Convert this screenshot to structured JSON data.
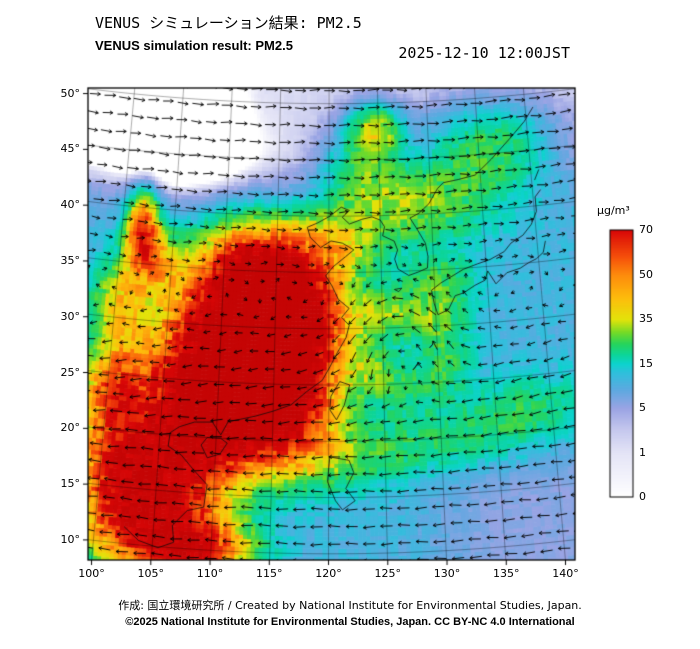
{
  "header": {
    "title_jp": "VENUS シミュレーション結果: PM2.5",
    "title_en": "VENUS simulation result: PM2.5",
    "datetime": "2025-12-10 12:00JST"
  },
  "axes": {
    "lat_ticks": [
      {
        "label": "50°",
        "value": 50
      },
      {
        "label": "45°",
        "value": 45
      },
      {
        "label": "40°",
        "value": 40
      },
      {
        "label": "35°",
        "value": 35
      },
      {
        "label": "30°",
        "value": 30
      },
      {
        "label": "25°",
        "value": 25
      },
      {
        "label": "20°",
        "value": 20
      },
      {
        "label": "15°",
        "value": 15
      },
      {
        "label": "10°",
        "value": 10
      }
    ],
    "lon_ticks": [
      {
        "label": "100°",
        "value": 100
      },
      {
        "label": "105°",
        "value": 105
      },
      {
        "label": "110°",
        "value": 110
      },
      {
        "label": "115°",
        "value": 115
      },
      {
        "label": "120°",
        "value": 120
      },
      {
        "label": "125°",
        "value": 125
      },
      {
        "label": "130°",
        "value": 130
      },
      {
        "label": "135°",
        "value": 135
      },
      {
        "label": "140°",
        "value": 140
      }
    ]
  },
  "colorbar": {
    "unit": "μg/m³",
    "tick_labels": [
      "70",
      "50",
      "35",
      "15",
      "5",
      "1",
      "0"
    ],
    "tick_values": [
      70,
      50,
      35,
      15,
      5,
      1,
      0
    ],
    "stops": [
      [
        0,
        "#ffffff"
      ],
      [
        1,
        "#e4e4f6"
      ],
      [
        3,
        "#c6c9ee"
      ],
      [
        5,
        "#9aa4e4"
      ],
      [
        9,
        "#5fa8e0"
      ],
      [
        13,
        "#2fc0dc"
      ],
      [
        15,
        "#0cd3cd"
      ],
      [
        19,
        "#0cd59a"
      ],
      [
        24,
        "#27d45b"
      ],
      [
        29,
        "#72da28"
      ],
      [
        35,
        "#e3e30a"
      ],
      [
        42,
        "#fdbd0c"
      ],
      [
        50,
        "#fd8b0c"
      ],
      [
        58,
        "#f6500a"
      ],
      [
        70,
        "#d90707"
      ],
      [
        90,
        "#c40505"
      ]
    ]
  },
  "footer": {
    "credit": "作成: 国立環境研究所 / Created by National Institute for Environmental Studies, Japan.",
    "license": "©2025 National Institute for Environmental Studies, Japan. CC BY-NC 4.0 International"
  },
  "map_data": {
    "lon_range": [
      99.7,
      140.8
    ],
    "lat_range": [
      8.2,
      50.5
    ],
    "grid_lats": [
      10,
      15,
      20,
      25,
      30,
      35,
      40,
      45,
      50
    ],
    "grid_lons": [
      100,
      105,
      110,
      115,
      120,
      125,
      130,
      135,
      140
    ],
    "base_level": 11,
    "blobs": [
      [
        112.5,
        31.5,
        4.3,
        4.0,
        66
      ],
      [
        110.0,
        25.5,
        4.3,
        4.3,
        70
      ],
      [
        113.8,
        35.3,
        3.2,
        2.6,
        52
      ],
      [
        107.8,
        19.5,
        3.2,
        3.8,
        60
      ],
      [
        104.3,
        12.5,
        3.4,
        3.2,
        64
      ],
      [
        109.0,
        10.0,
        3.0,
        2.0,
        50
      ],
      [
        115.5,
        21.8,
        3.2,
        3.0,
        58
      ],
      [
        117.5,
        31.5,
        2.5,
        2.5,
        48
      ],
      [
        118.0,
        27.0,
        2.6,
        3.0,
        38
      ],
      [
        120.8,
        37.3,
        2.8,
        2.2,
        24
      ],
      [
        128.0,
        41.0,
        5.0,
        2.4,
        20
      ],
      [
        136.0,
        45.5,
        4.5,
        2.8,
        22
      ],
      [
        123.5,
        44.8,
        2.8,
        2.4,
        18
      ],
      [
        124.8,
        47.8,
        1.8,
        1.5,
        26
      ],
      [
        124.5,
        31.3,
        2.2,
        1.6,
        16
      ],
      [
        129.2,
        30.8,
        2.4,
        1.5,
        13
      ],
      [
        130.8,
        27.3,
        1.7,
        2.2,
        12
      ],
      [
        127.0,
        24.7,
        2.4,
        1.6,
        11
      ],
      [
        123.8,
        26.6,
        1.5,
        1.8,
        13
      ],
      [
        130.5,
        34.0,
        2.5,
        1.8,
        14
      ],
      [
        121.0,
        18.5,
        3.8,
        2.0,
        13
      ],
      [
        130.0,
        19.8,
        5.0,
        2.0,
        11
      ],
      [
        138.0,
        21.8,
        4.0,
        2.2,
        11
      ],
      [
        106.0,
        45.0,
        5.0,
        4.0,
        -6
      ],
      [
        101.5,
        17.0,
        2.5,
        3.0,
        40
      ],
      [
        100.8,
        23.5,
        2.0,
        3.0,
        45
      ],
      [
        102.0,
        38.0,
        1.0,
        2.2,
        55
      ],
      [
        103.5,
        35.5,
        1.5,
        1.8,
        30
      ],
      [
        100.5,
        31.5,
        1.8,
        2.5,
        25
      ]
    ],
    "noise": {
      "cell_deg": 0.55,
      "min_factor": 0.82,
      "amplitude": 0.36
    },
    "wind": {
      "jet": {
        "lat0": 33,
        "width": 7,
        "max": 8
      },
      "vortex": {
        "lon": 126.8,
        "lat": 28.8,
        "strength": 3.2,
        "radius2": 20
      }
    },
    "coastlines": [
      [
        [
          102.5,
          11.5
        ],
        [
          103.8,
          10.4
        ],
        [
          105.5,
          9.9
        ],
        [
          106.8,
          10.5
        ],
        [
          106.6,
          12.0
        ],
        [
          107.8,
          13.4
        ],
        [
          109.2,
          13.8
        ],
        [
          109.4,
          15.8
        ],
        [
          108.2,
          17.0
        ],
        [
          107.0,
          18.3
        ],
        [
          105.8,
          19.0
        ],
        [
          105.9,
          20.2
        ],
        [
          106.7,
          20.8
        ],
        [
          108.0,
          21.3
        ],
        [
          109.6,
          21.4
        ],
        [
          110.4,
          20.3
        ],
        [
          111.0,
          21.5
        ],
        [
          113.4,
          22.1
        ],
        [
          115.0,
          22.6
        ],
        [
          116.6,
          23.2
        ],
        [
          118.0,
          24.4
        ],
        [
          119.4,
          25.4
        ],
        [
          120.1,
          26.6
        ],
        [
          120.8,
          27.9
        ],
        [
          121.6,
          29.2
        ],
        [
          121.9,
          30.3
        ],
        [
          121.2,
          31.0
        ],
        [
          121.9,
          31.8
        ],
        [
          120.9,
          32.6
        ],
        [
          120.3,
          33.8
        ],
        [
          119.7,
          34.7
        ],
        [
          120.4,
          35.5
        ],
        [
          121.6,
          36.4
        ],
        [
          122.4,
          37.0
        ],
        [
          121.3,
          37.6
        ],
        [
          120.2,
          37.8
        ],
        [
          119.2,
          37.2
        ],
        [
          118.2,
          38.1
        ],
        [
          117.9,
          39.0
        ],
        [
          118.9,
          39.4
        ],
        [
          120.1,
          40.0
        ],
        [
          121.2,
          40.8
        ],
        [
          122.0,
          40.5
        ],
        [
          121.3,
          39.9
        ],
        [
          122.0,
          39.3
        ],
        [
          123.2,
          39.7
        ],
        [
          124.2,
          39.9
        ],
        [
          125.0,
          39.6
        ],
        [
          125.4,
          39.0
        ],
        [
          125.2,
          38.2
        ],
        [
          126.3,
          37.7
        ],
        [
          126.6,
          36.9
        ],
        [
          126.3,
          36.1
        ],
        [
          126.6,
          35.2
        ],
        [
          127.6,
          34.6
        ],
        [
          128.6,
          34.9
        ],
        [
          129.4,
          35.2
        ],
        [
          129.5,
          36.2
        ],
        [
          129.3,
          37.4
        ],
        [
          128.6,
          38.6
        ],
        [
          127.9,
          39.7
        ],
        [
          128.8,
          40.1
        ],
        [
          129.8,
          40.9
        ],
        [
          130.7,
          42.2
        ],
        [
          131.3,
          42.7
        ],
        [
          132.8,
          42.9
        ],
        [
          134.5,
          43.2
        ],
        [
          136.2,
          44.5
        ],
        [
          138.2,
          46.2
        ],
        [
          139.8,
          47.6
        ],
        [
          140.8,
          48.8
        ]
      ],
      [
        [
          130.2,
          31.0
        ],
        [
          131.2,
          31.4
        ],
        [
          131.9,
          32.6
        ],
        [
          132.7,
          32.8
        ],
        [
          133.8,
          33.4
        ],
        [
          134.8,
          33.8
        ],
        [
          135.1,
          34.6
        ],
        [
          135.8,
          33.4
        ],
        [
          136.9,
          34.3
        ],
        [
          138.2,
          34.6
        ],
        [
          139.0,
          35.0
        ],
        [
          139.8,
          35.3
        ],
        [
          140.5,
          35.8
        ],
        [
          140.8,
          36.8
        ]
      ],
      [
        [
          129.7,
          33.2
        ],
        [
          130.6,
          33.8
        ],
        [
          131.6,
          34.3
        ],
        [
          132.8,
          34.9
        ],
        [
          134.2,
          35.3
        ],
        [
          135.4,
          35.6
        ],
        [
          136.8,
          36.2
        ],
        [
          137.5,
          36.9
        ],
        [
          138.7,
          37.5
        ],
        [
          139.6,
          38.4
        ],
        [
          140.2,
          39.5
        ],
        [
          140.2,
          40.8
        ],
        [
          140.8,
          41.4
        ]
      ],
      [
        [
          130.2,
          31.0
        ],
        [
          129.9,
          32.0
        ],
        [
          129.7,
          33.2
        ]
      ],
      [
        [
          140.3,
          42.3
        ],
        [
          140.8,
          43.2
        ]
      ],
      [
        [
          121.0,
          25.3
        ],
        [
          121.9,
          25.0
        ],
        [
          121.4,
          23.2
        ],
        [
          120.7,
          21.9
        ],
        [
          120.1,
          22.8
        ],
        [
          120.2,
          24.0
        ],
        [
          121.0,
          25.3
        ]
      ],
      [
        [
          108.7,
          19.3
        ],
        [
          109.2,
          20.0
        ],
        [
          110.4,
          20.0
        ],
        [
          111.0,
          19.6
        ],
        [
          110.4,
          18.6
        ],
        [
          109.3,
          18.2
        ],
        [
          108.7,
          19.3
        ]
      ],
      [
        [
          120.1,
          18.6
        ],
        [
          121.8,
          18.3
        ],
        [
          122.2,
          17.2
        ],
        [
          121.5,
          15.8
        ],
        [
          122.3,
          14.7
        ],
        [
          121.2,
          13.9
        ],
        [
          120.6,
          14.7
        ],
        [
          119.9,
          16.4
        ],
        [
          120.1,
          18.6
        ]
      ],
      [
        [
          126.2,
          33.4
        ],
        [
          126.9,
          33.5
        ],
        [
          126.6,
          33.2
        ],
        [
          126.2,
          33.4
        ]
      ],
      [
        [
          127.7,
          26.2
        ],
        [
          128.2,
          26.8
        ],
        [
          127.9,
          26.4
        ],
        [
          127.7,
          26.2
        ]
      ],
      [
        [
          129.3,
          28.1
        ],
        [
          129.6,
          28.4
        ],
        [
          129.4,
          28.2
        ],
        [
          129.3,
          28.1
        ]
      ]
    ]
  }
}
